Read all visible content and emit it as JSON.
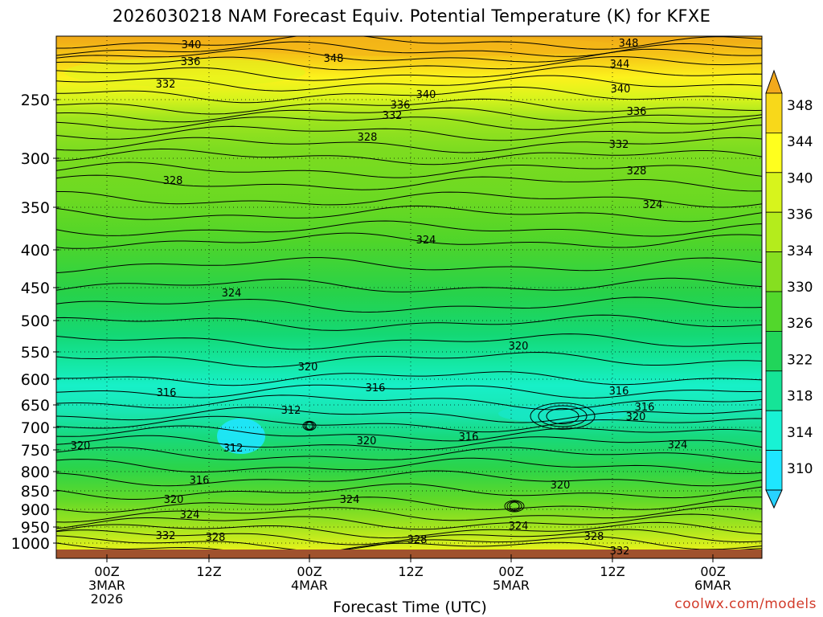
{
  "chart_data": {
    "type": "heatmap",
    "title": "2026030218 NAM Forecast Equiv. Potential Temperature (K) for KFXE",
    "xlabel": "Forecast Time (UTC)",
    "ylabel": "",
    "y_ticks": [
      "250",
      "300",
      "350",
      "400",
      "450",
      "500",
      "550",
      "600",
      "650",
      "700",
      "750",
      "800",
      "850",
      "900",
      "950",
      "1000"
    ],
    "x_ticks": [
      {
        "lines": [
          "00Z",
          "3MAR",
          "2026"
        ]
      },
      {
        "lines": [
          "12Z"
        ]
      },
      {
        "lines": [
          "00Z",
          "4MAR"
        ]
      },
      {
        "lines": [
          "12Z"
        ]
      },
      {
        "lines": [
          "00Z",
          "5MAR"
        ]
      },
      {
        "lines": [
          "12Z"
        ]
      },
      {
        "lines": [
          "00Z",
          "6MAR"
        ]
      }
    ],
    "colorbar": {
      "labels": [
        "348",
        "344",
        "340",
        "336",
        "334",
        "330",
        "326",
        "322",
        "318",
        "314",
        "310"
      ],
      "colors": [
        "#f2a91c",
        "#f8d81a",
        "#ffff1e",
        "#d7f41c",
        "#b4ec1c",
        "#86df20",
        "#52d72c",
        "#21d55a",
        "#15e497",
        "#18f2d4",
        "#1ee6ff",
        "#28d2ff"
      ]
    },
    "contour_labels": [
      {
        "t": "340",
        "x": 238,
        "y": 55
      },
      {
        "t": "348",
        "x": 415,
        "y": 72
      },
      {
        "t": "348",
        "x": 782,
        "y": 53
      },
      {
        "t": "336",
        "x": 237,
        "y": 76
      },
      {
        "t": "344",
        "x": 771,
        "y": 79
      },
      {
        "t": "332",
        "x": 206,
        "y": 104
      },
      {
        "t": "340",
        "x": 772,
        "y": 110
      },
      {
        "t": "340",
        "x": 530,
        "y": 117
      },
      {
        "t": "336",
        "x": 498,
        "y": 130
      },
      {
        "t": "332",
        "x": 488,
        "y": 143
      },
      {
        "t": "336",
        "x": 792,
        "y": 138
      },
      {
        "t": "328",
        "x": 457,
        "y": 170
      },
      {
        "t": "332",
        "x": 770,
        "y": 179
      },
      {
        "t": "328",
        "x": 215,
        "y": 224
      },
      {
        "t": "328",
        "x": 792,
        "y": 212
      },
      {
        "t": "324",
        "x": 812,
        "y": 254
      },
      {
        "t": "324",
        "x": 530,
        "y": 298
      },
      {
        "t": "324",
        "x": 288,
        "y": 364
      },
      {
        "t": "320",
        "x": 645,
        "y": 430
      },
      {
        "t": "320",
        "x": 383,
        "y": 456
      },
      {
        "t": "316",
        "x": 207,
        "y": 488
      },
      {
        "t": "316",
        "x": 467,
        "y": 482
      },
      {
        "t": "316",
        "x": 770,
        "y": 486
      },
      {
        "t": "312",
        "x": 362,
        "y": 510
      },
      {
        "t": "316",
        "x": 802,
        "y": 506
      },
      {
        "t": "320",
        "x": 791,
        "y": 518
      },
      {
        "t": "320",
        "x": 456,
        "y": 548
      },
      {
        "t": "316",
        "x": 583,
        "y": 543
      },
      {
        "t": "324",
        "x": 843,
        "y": 553
      },
      {
        "t": "320",
        "x": 100,
        "y": 554
      },
      {
        "t": "312",
        "x": 290,
        "y": 557
      },
      {
        "t": "316",
        "x": 248,
        "y": 597
      },
      {
        "t": "320",
        "x": 697,
        "y": 603
      },
      {
        "t": "324",
        "x": 435,
        "y": 621
      },
      {
        "t": "320",
        "x": 216,
        "y": 621
      },
      {
        "t": "324",
        "x": 236,
        "y": 640
      },
      {
        "t": "324",
        "x": 645,
        "y": 654
      },
      {
        "t": "332",
        "x": 206,
        "y": 666
      },
      {
        "t": "328",
        "x": 268,
        "y": 668
      },
      {
        "t": "328",
        "x": 519,
        "y": 671
      },
      {
        "t": "328",
        "x": 739,
        "y": 667
      },
      {
        "t": "332",
        "x": 771,
        "y": 685
      }
    ]
  },
  "x_axis_label": "Forecast Time (UTC)",
  "credit": "coolwx.com/models"
}
